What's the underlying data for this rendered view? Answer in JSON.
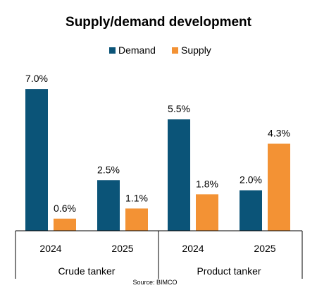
{
  "chart_data": {
    "type": "bar",
    "title": "Supply/demand development",
    "source": "Source: BIMCO",
    "legend_position": "top-center",
    "grid": false,
    "ylim": [
      0,
      8
    ],
    "groups": [
      {
        "name": "Crude tanker",
        "categories": [
          "2024",
          "2025"
        ]
      },
      {
        "name": "Product tanker",
        "categories": [
          "2024",
          "2025"
        ]
      }
    ],
    "categories": [
      "2024",
      "2025",
      "2024",
      "2025"
    ],
    "series": [
      {
        "name": "Demand",
        "color": "#0b5478",
        "values": [
          7.0,
          2.5,
          5.5,
          2.0
        ],
        "labels": [
          "7.0%",
          "2.5%",
          "5.5%",
          "2.0%"
        ]
      },
      {
        "name": "Supply",
        "color": "#f39234",
        "values": [
          0.6,
          1.1,
          1.8,
          4.3
        ],
        "labels": [
          "0.6%",
          "1.1%",
          "1.8%",
          "4.3%"
        ]
      }
    ]
  }
}
